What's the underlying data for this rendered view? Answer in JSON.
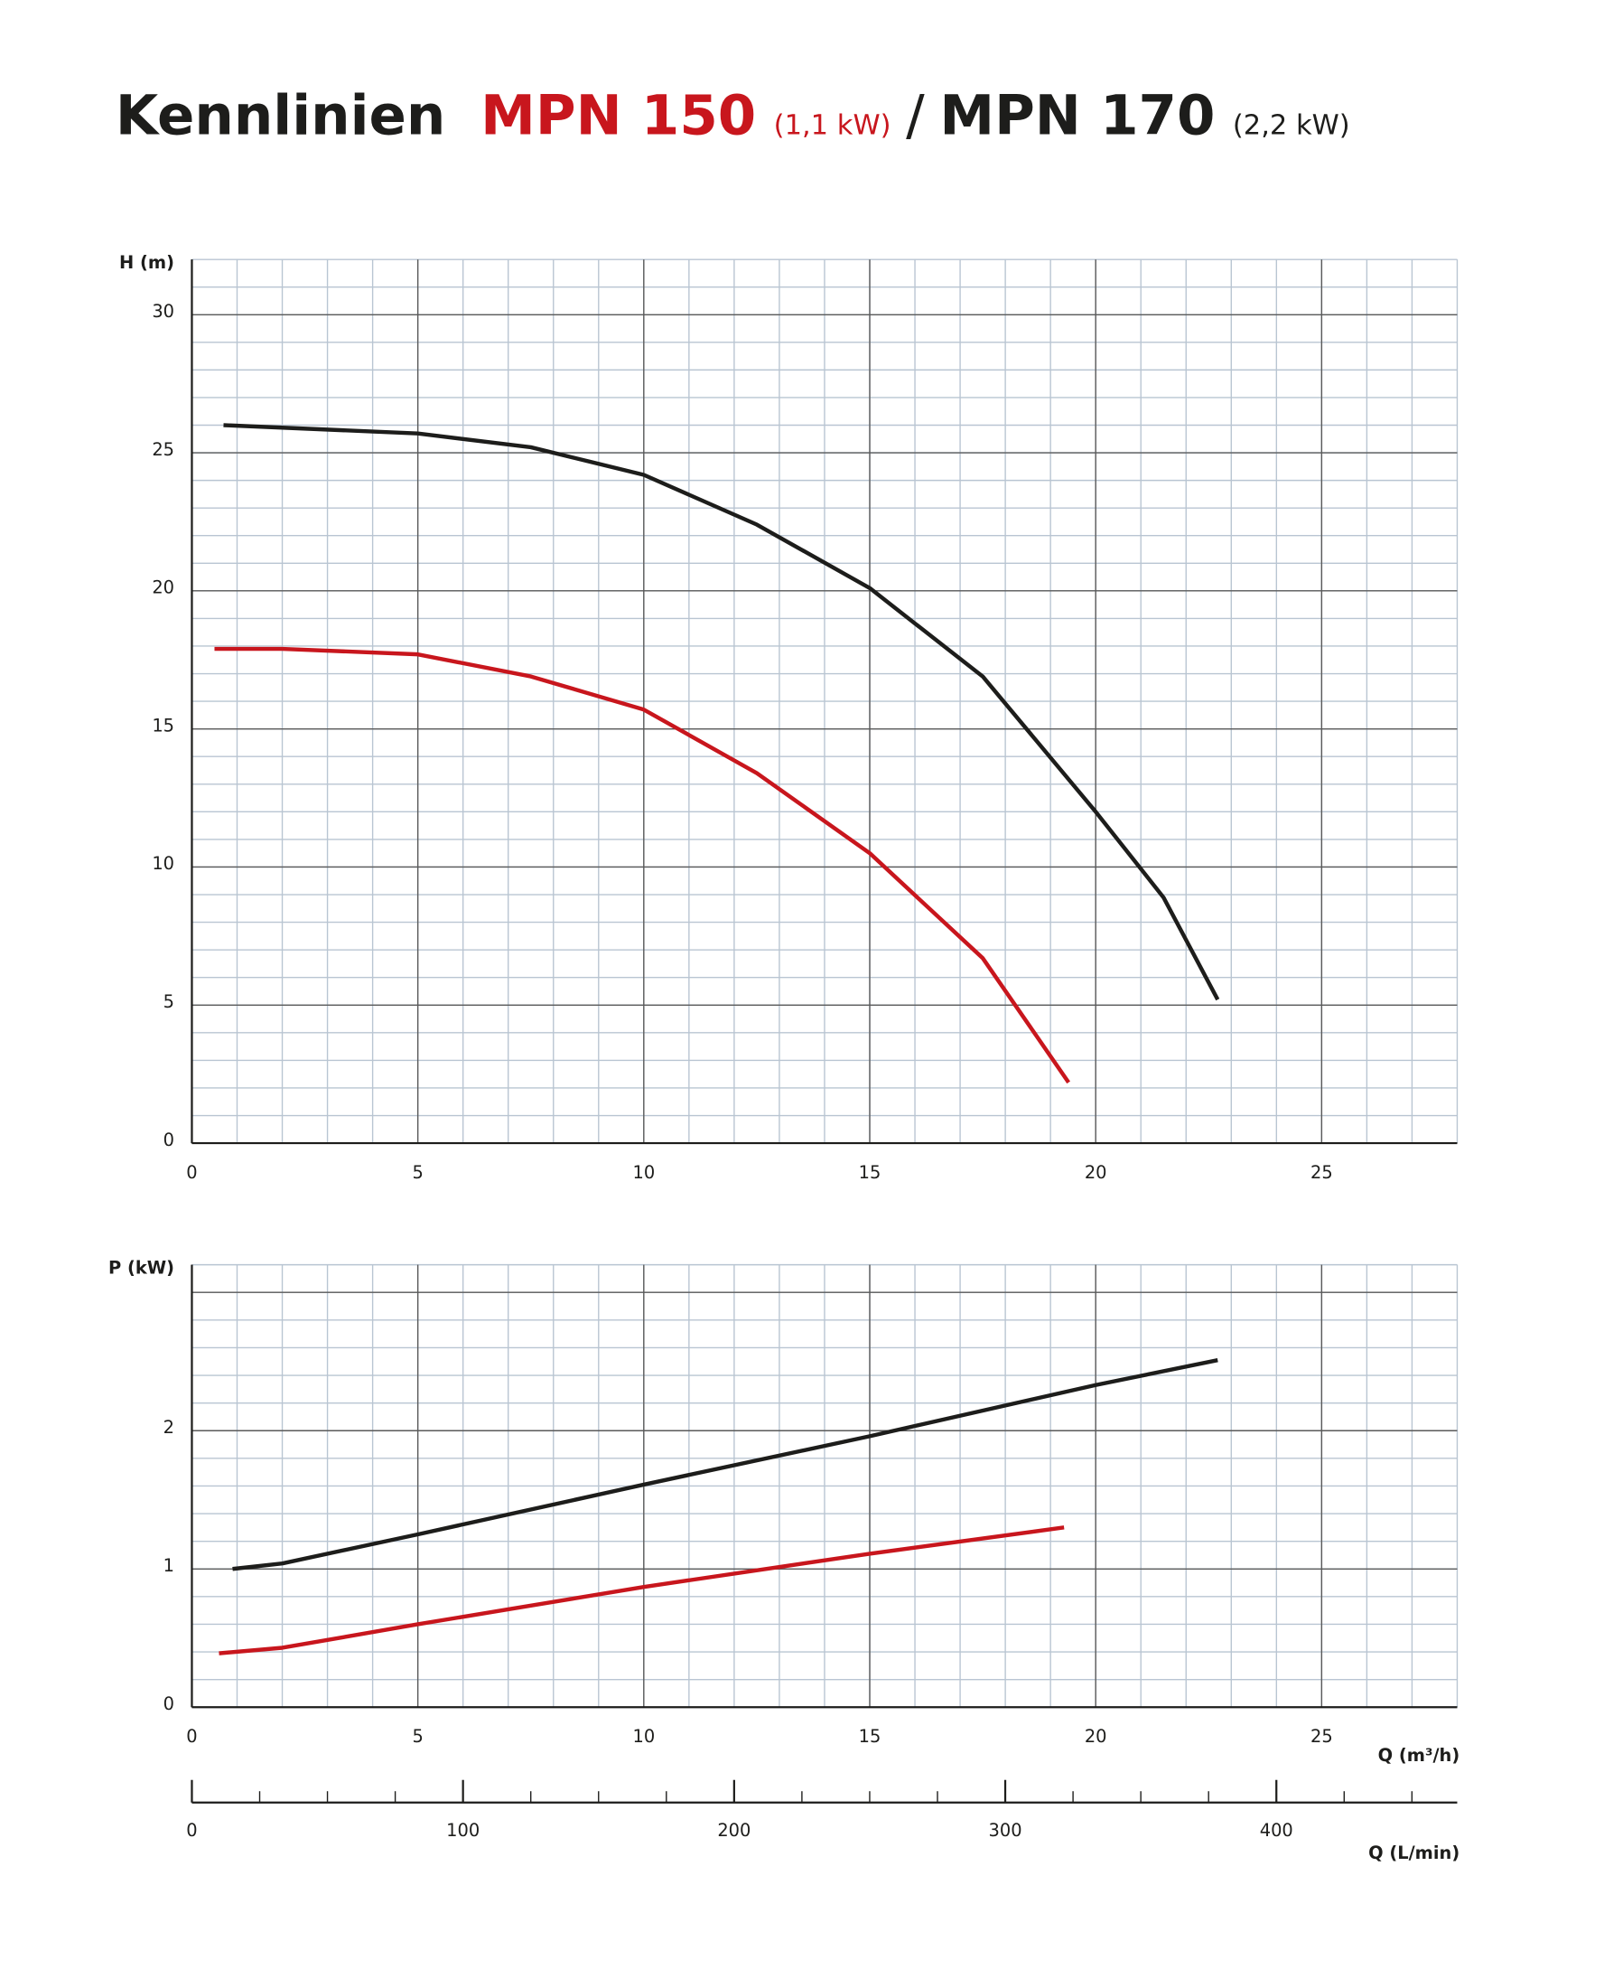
{
  "chart_data": [
    {
      "type": "line",
      "title": "Kennlinien",
      "title_separator": "/",
      "ylabel": "H (m)",
      "xlim": [
        0,
        28
      ],
      "ylim": [
        0,
        32
      ],
      "xticks": [
        0,
        5,
        10,
        15,
        20,
        25
      ],
      "yticks": [
        0,
        5,
        10,
        15,
        20,
        25,
        30
      ],
      "grid": true,
      "grid_minor_step": {
        "x": 1,
        "y": 1
      },
      "grid_major_step": {
        "x": 5,
        "y": 5
      },
      "series": [
        {
          "name": "MPN 150",
          "rating": "(1,1 kW)",
          "color": "#c8161d",
          "x": [
            0.5,
            2,
            5,
            7.5,
            10,
            12.5,
            15,
            17.5,
            19.4
          ],
          "values": [
            17.9,
            17.9,
            17.7,
            16.9,
            15.7,
            13.4,
            10.5,
            6.7,
            2.2
          ]
        },
        {
          "name": "MPN 170",
          "rating": "(2,2 kW)",
          "color": "#1d1d1b",
          "x": [
            0.7,
            5,
            7.5,
            10,
            12.5,
            15,
            17.5,
            20,
            21.5,
            22.7
          ],
          "values": [
            26.0,
            25.7,
            25.2,
            24.2,
            22.4,
            20.1,
            16.9,
            12.0,
            8.9,
            5.2
          ]
        }
      ]
    },
    {
      "type": "line",
      "ylabel": "P (kW)",
      "xlabel": "Q (m³/h)",
      "xlim": [
        0,
        28
      ],
      "ylim": [
        0,
        3.2
      ],
      "xticks": [
        0,
        5,
        10,
        15,
        20,
        25
      ],
      "yticks": [
        0,
        1,
        2
      ],
      "grid": true,
      "grid_minor_step": {
        "x": 1,
        "y": 0.2
      },
      "grid_major_step": {
        "x": 5,
        "y": 1
      },
      "series": [
        {
          "color": "#c8161d",
          "x": [
            0.6,
            2,
            5,
            10,
            15,
            19.3
          ],
          "values": [
            0.39,
            0.43,
            0.6,
            0.87,
            1.11,
            1.3
          ]
        },
        {
          "color": "#1d1d1b",
          "x": [
            0.9,
            2,
            5,
            10,
            15,
            20,
            22.7
          ],
          "values": [
            1.0,
            1.04,
            1.25,
            1.61,
            1.96,
            2.33,
            2.51
          ]
        }
      ]
    },
    {
      "type": "axis",
      "xlabel": "Q (L/min)",
      "xlim": [
        0,
        466.7
      ],
      "xticks": [
        0,
        100,
        200,
        300,
        400
      ],
      "minor_step": 25
    }
  ]
}
